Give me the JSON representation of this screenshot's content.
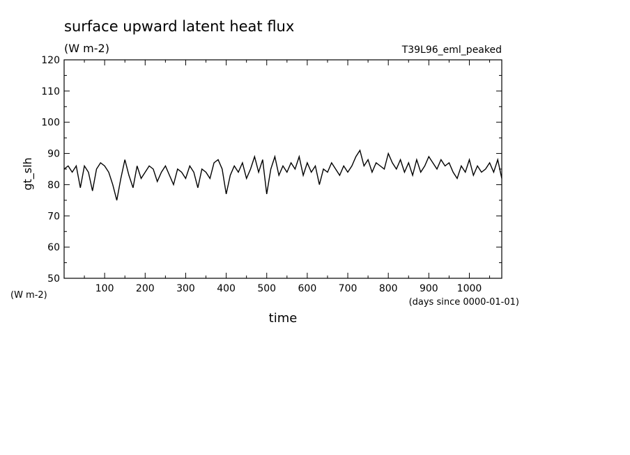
{
  "chart_data": {
    "type": "line",
    "title": "surface upward latent heat flux",
    "units": "(W m-2)",
    "run_label": "T39L96_eml_peaked",
    "ylabel": "gt_slh",
    "y_unit_label": "(W m-2)",
    "xlabel": "time",
    "x_unit_label": "(days since 0000-01-01)",
    "xlim": [
      0,
      1080
    ],
    "ylim": [
      50,
      120
    ],
    "x_ticks": [
      100,
      200,
      300,
      400,
      500,
      600,
      700,
      800,
      900,
      1000
    ],
    "y_ticks": [
      50,
      60,
      70,
      80,
      90,
      100,
      110,
      120
    ],
    "grid": false,
    "series": [
      {
        "x": [
          0,
          10,
          20,
          30,
          40,
          50,
          60,
          70,
          80,
          90,
          100,
          110,
          120,
          130,
          140,
          150,
          160,
          170,
          180,
          190,
          200,
          210,
          220,
          230,
          240,
          250,
          260,
          270,
          280,
          290,
          300,
          310,
          320,
          330,
          340,
          350,
          360,
          370,
          380,
          390,
          400,
          410,
          420,
          430,
          440,
          450,
          460,
          470,
          480,
          490,
          500,
          510,
          520,
          530,
          540,
          550,
          560,
          570,
          580,
          590,
          600,
          610,
          620,
          630,
          640,
          650,
          660,
          670,
          680,
          690,
          700,
          710,
          720,
          730,
          740,
          750,
          760,
          770,
          780,
          790,
          800,
          810,
          820,
          830,
          840,
          850,
          860,
          870,
          880,
          890,
          900,
          910,
          920,
          930,
          940,
          950,
          960,
          970,
          980,
          990,
          1000,
          1010,
          1020,
          1030,
          1040,
          1050,
          1060,
          1070,
          1080
        ],
        "values": [
          85,
          86,
          84,
          86,
          79,
          86,
          84,
          78,
          85,
          87,
          86,
          84,
          80,
          75,
          82,
          88,
          83,
          79,
          86,
          82,
          84,
          86,
          85,
          81,
          84,
          86,
          83,
          80,
          85,
          84,
          82,
          86,
          84,
          79,
          85,
          84,
          82,
          87,
          88,
          85,
          77,
          83,
          86,
          84,
          87,
          82,
          85,
          89,
          84,
          88,
          77,
          85,
          89,
          83,
          86,
          84,
          87,
          85,
          89,
          83,
          87,
          84,
          86,
          80,
          85,
          84,
          87,
          85,
          83,
          86,
          84,
          86,
          89,
          91,
          86,
          88,
          84,
          87,
          86,
          85,
          90,
          87,
          85,
          88,
          84,
          87,
          83,
          88,
          84,
          86,
          89,
          87,
          85,
          88,
          86,
          87,
          84,
          82,
          86,
          84,
          88,
          83,
          86,
          84,
          85,
          87,
          84,
          88,
          82
        ]
      }
    ]
  }
}
